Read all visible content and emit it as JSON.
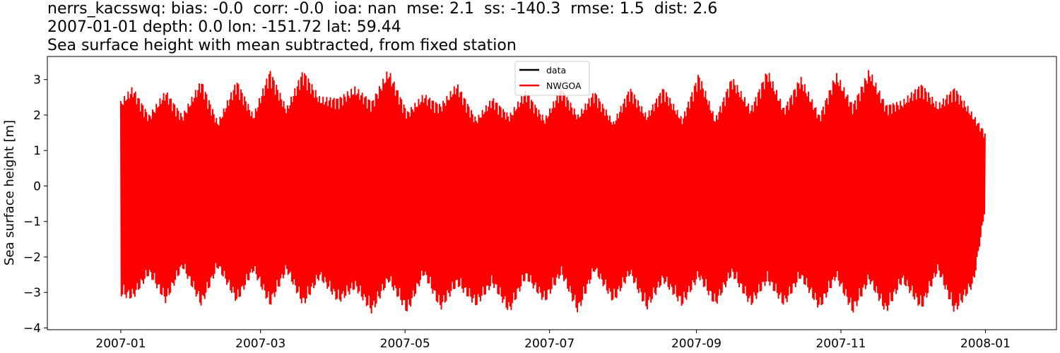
{
  "chart_data": {
    "type": "line",
    "title_lines": [
      "nerrs_kacsswq: bias: -0.0  corr: -0.0  ioa: nan  mse: 2.1  ss: -140.3  rmse: 1.5  dist: 2.6",
      "2007-01-01 depth: 0.0 lon: -151.72 lat: 59.44",
      "Sea surface height with mean subtracted, from fixed station"
    ],
    "ylabel": "Sea surface height [m]",
    "xlabel": "",
    "xlim": [
      "2006-12-01",
      "2008-01-31"
    ],
    "ylim": [
      -4.05,
      3.65
    ],
    "x_ticks": [
      "2007-01",
      "2007-03",
      "2007-05",
      "2007-07",
      "2007-09",
      "2007-11",
      "2008-01"
    ],
    "y_ticks": [
      -4,
      -3,
      -2,
      -1,
      0,
      1,
      2,
      3
    ],
    "x_range": [
      "2007-01-01",
      "2008-01-01"
    ],
    "legend": {
      "placement": "upper center"
    },
    "series": [
      {
        "name": "data",
        "color": "#000000",
        "values": []
      },
      {
        "name": "NWGOA",
        "color": "#ff0000",
        "tidal_envelope": {
          "dates": [
            "2007-01-01",
            "2007-01-06",
            "2007-01-13",
            "2007-01-20",
            "2007-01-27",
            "2007-02-04",
            "2007-02-11",
            "2007-02-19",
            "2007-02-26",
            "2007-03-05",
            "2007-03-12",
            "2007-03-19",
            "2007-03-26",
            "2007-04-03",
            "2007-04-10",
            "2007-04-17",
            "2007-04-24",
            "2007-05-02",
            "2007-05-09",
            "2007-05-16",
            "2007-05-23",
            "2007-05-31",
            "2007-06-07",
            "2007-06-14",
            "2007-06-21",
            "2007-06-29",
            "2007-07-06",
            "2007-07-13",
            "2007-07-20",
            "2007-07-28",
            "2007-08-04",
            "2007-08-11",
            "2007-08-18",
            "2007-08-26",
            "2007-09-02",
            "2007-09-09",
            "2007-09-16",
            "2007-09-24",
            "2007-10-01",
            "2007-10-08",
            "2007-10-15",
            "2007-10-23",
            "2007-10-30",
            "2007-11-06",
            "2007-11-13",
            "2007-11-20",
            "2007-11-27",
            "2007-12-05",
            "2007-12-12",
            "2007-12-19",
            "2007-12-27",
            "2008-01-01"
          ],
          "high": [
            2.4,
            2.8,
            2.0,
            2.7,
            2.0,
            3.0,
            1.8,
            3.0,
            2.0,
            3.3,
            2.2,
            3.3,
            2.5,
            2.5,
            2.8,
            2.4,
            3.3,
            2.1,
            2.6,
            2.3,
            2.9,
            1.9,
            2.5,
            2.0,
            2.7,
            1.9,
            2.8,
            2.0,
            2.7,
            1.8,
            2.8,
            2.0,
            2.8,
            1.9,
            3.2,
            1.9,
            3.1,
            2.2,
            3.3,
            2.2,
            3.1,
            2.0,
            3.2,
            2.3,
            3.3,
            2.3,
            2.4,
            2.9,
            2.3,
            2.8,
            2.0,
            1.5
          ],
          "low": [
            -3.1,
            -3.2,
            -2.5,
            -3.3,
            -2.3,
            -3.4,
            -2.3,
            -3.3,
            -2.4,
            -3.4,
            -2.4,
            -3.4,
            -2.6,
            -3.3,
            -2.9,
            -3.6,
            -2.7,
            -3.6,
            -2.5,
            -3.5,
            -2.8,
            -3.4,
            -2.8,
            -3.6,
            -2.6,
            -3.3,
            -2.5,
            -3.6,
            -2.4,
            -3.3,
            -2.5,
            -3.5,
            -2.7,
            -3.4,
            -2.6,
            -3.4,
            -2.5,
            -3.4,
            -2.7,
            -3.4,
            -2.6,
            -3.5,
            -2.6,
            -3.6,
            -2.7,
            -3.6,
            -2.7,
            -3.5,
            -2.4,
            -3.6,
            -2.8,
            -0.6
          ]
        }
      }
    ]
  }
}
